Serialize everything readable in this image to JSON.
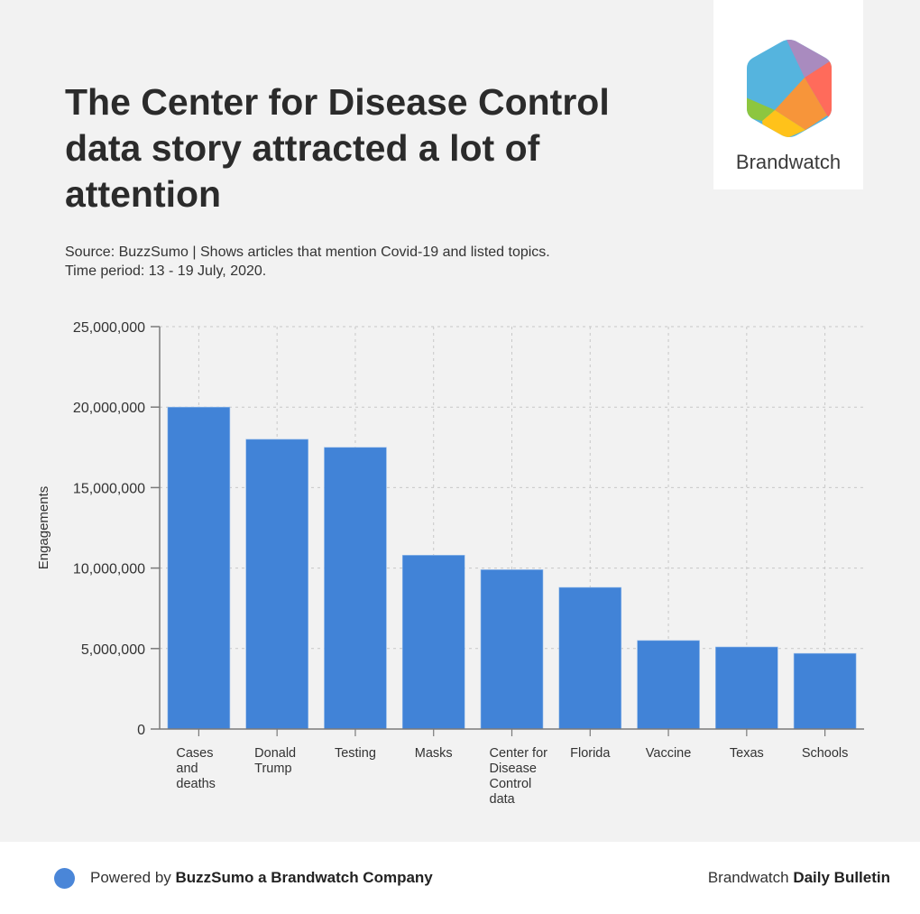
{
  "header": {
    "title": "The Center for Disease Control data story attracted a lot of attention",
    "subtitle_line1": "Source: BuzzSumo | Shows articles that mention Covid-19 and listed topics.",
    "subtitle_line2": "Time period: 13 - 19 July, 2020."
  },
  "logo": {
    "name": "Brandwatch",
    "icon": "brandwatch-hexagon-logo"
  },
  "footer": {
    "left_prefix": "Powered by ",
    "left_bold": "BuzzSumo a Brandwatch Company",
    "right_prefix": "Brandwatch ",
    "right_bold": "Daily Bulletin",
    "dot_color": "#4a86d8"
  },
  "chart_data": {
    "type": "bar",
    "title": "The Center for Disease Control data story attracted a lot of attention",
    "xlabel": "",
    "ylabel": "Engagements",
    "ylim": [
      0,
      25000000
    ],
    "yticks": [
      0,
      5000000,
      10000000,
      15000000,
      20000000,
      25000000
    ],
    "ytick_labels": [
      "0",
      "5,000,000",
      "10,000,000",
      "15,000,000",
      "20,000,000",
      "25,000,000"
    ],
    "grid": true,
    "legend": "none",
    "bar_color": "#4183d7",
    "categories": [
      "Cases and deaths",
      "Donald Trump",
      "Testing",
      "Masks",
      "Center for Disease Control data",
      "Florida",
      "Vaccine",
      "Texas",
      "Schools"
    ],
    "category_lines": [
      [
        "Cases",
        "and",
        "deaths"
      ],
      [
        "Donald",
        "Trump"
      ],
      [
        "Testing"
      ],
      [
        "Masks"
      ],
      [
        "Center for",
        "Disease",
        "Control",
        "data"
      ],
      [
        "Florida"
      ],
      [
        "Vaccine"
      ],
      [
        "Texas"
      ],
      [
        "Schools"
      ]
    ],
    "values": [
      20000000,
      18000000,
      17500000,
      10800000,
      9900000,
      8800000,
      5500000,
      5100000,
      4700000
    ]
  }
}
